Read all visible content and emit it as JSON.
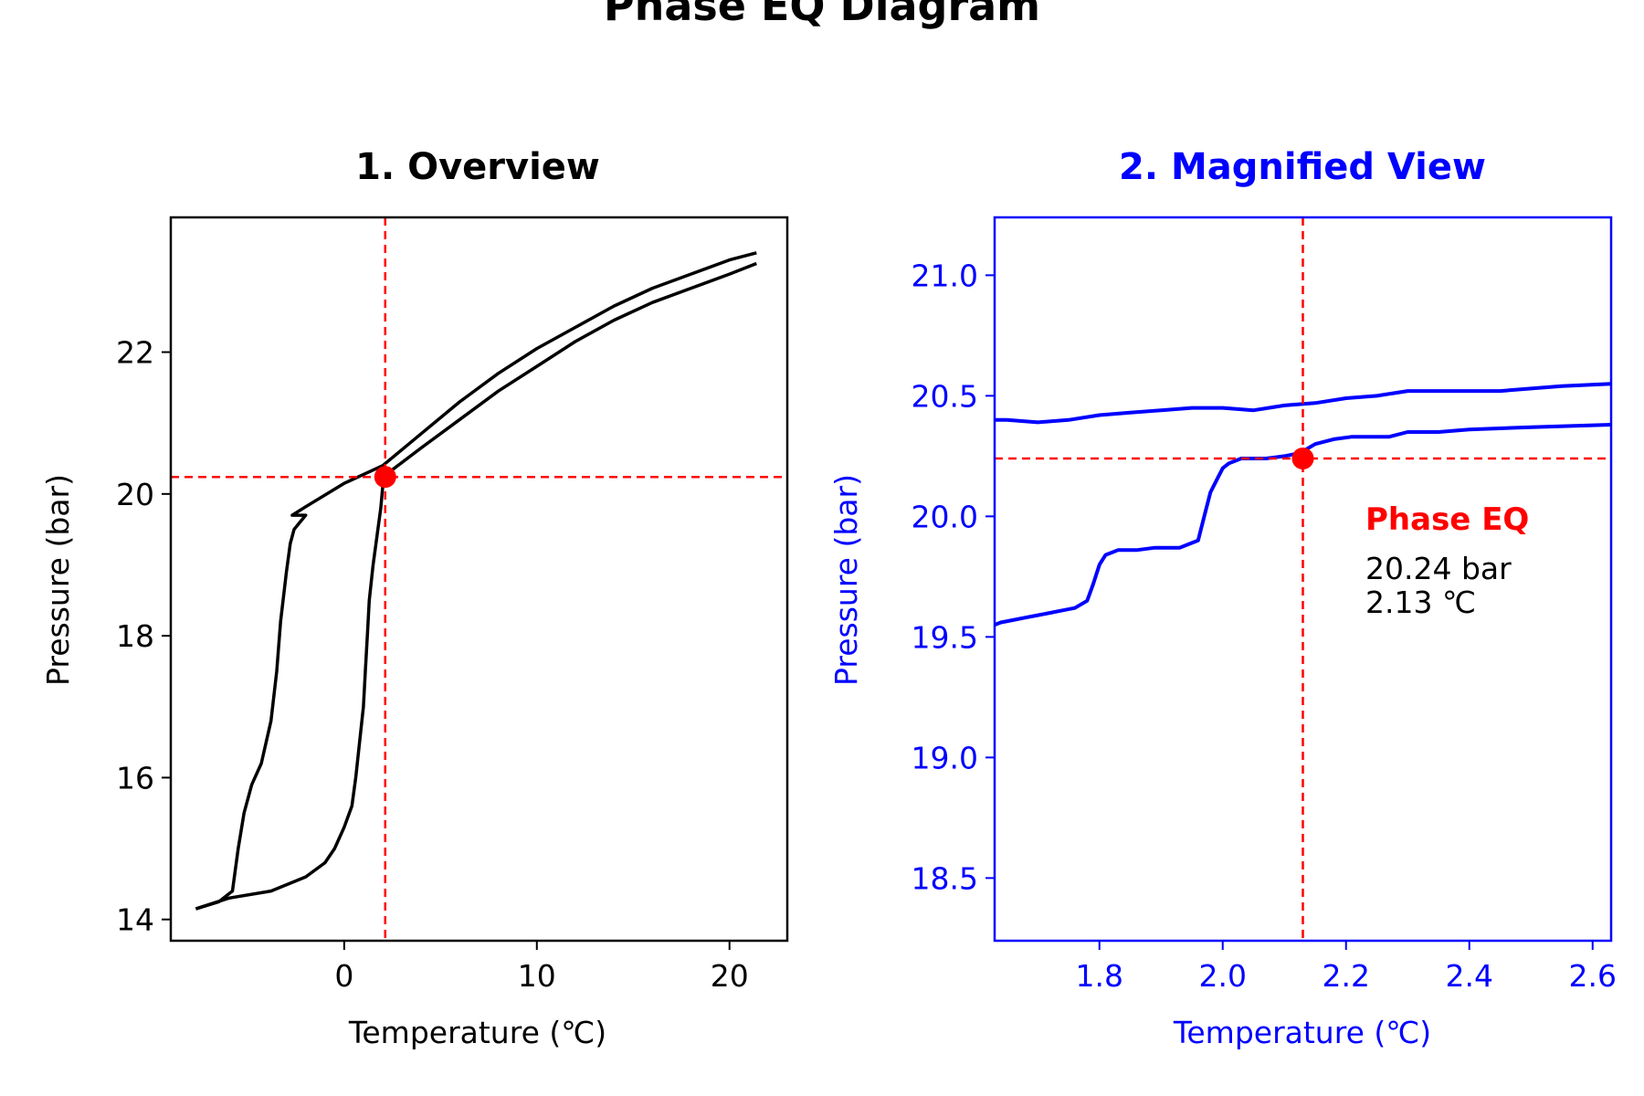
{
  "figure": {
    "suptitle": "Phase EQ Diagram",
    "marker_color": "#ff0000"
  },
  "chart_data": [
    {
      "type": "line",
      "title": "1. Overview",
      "xlabel": "Temperature (℃)",
      "ylabel": "Pressure (bar)",
      "color": "#000000",
      "title_color": "#000000",
      "xlim": [
        -9,
        23
      ],
      "ylim": [
        13.7,
        23.9
      ],
      "xticks": [
        0,
        10,
        20
      ],
      "yticks": [
        14,
        16,
        18,
        20,
        22
      ],
      "xtick_labels": [
        "0",
        "10",
        "20"
      ],
      "ytick_labels": [
        "14",
        "16",
        "18",
        "20",
        "22"
      ],
      "grid": false,
      "series": [
        {
          "x": [
            -7.7,
            -6.5,
            -5.8,
            -5.5,
            -5.2,
            -4.8,
            -4.3,
            -3.8,
            -3.5,
            -3.3,
            -3.0,
            -2.8,
            -2.6,
            -2.3,
            -2.0,
            -2.7,
            -2.0,
            0.0,
            2.0,
            4.0,
            6.0,
            8.0,
            10.0,
            12.0,
            14.0,
            16.0,
            18.0,
            20.0,
            21.4
          ],
          "y": [
            14.15,
            14.25,
            14.4,
            15.0,
            15.5,
            15.9,
            16.2,
            16.8,
            17.5,
            18.2,
            18.9,
            19.3,
            19.5,
            19.6,
            19.7,
            19.7,
            19.82,
            20.15,
            20.4,
            20.85,
            21.3,
            21.7,
            22.05,
            22.35,
            22.65,
            22.9,
            23.1,
            23.3,
            23.4
          ]
        },
        {
          "x": [
            -7.7,
            -6.0,
            -3.8,
            -2.0,
            -1.0,
            -0.5,
            0.0,
            0.4,
            0.6,
            0.8,
            1.0,
            1.1,
            1.2,
            1.3,
            1.5,
            1.7,
            1.9,
            2.0,
            2.3,
            4.0,
            6.0,
            8.0,
            10.0,
            12.0,
            14.0,
            16.0,
            18.0,
            20.0,
            21.4
          ],
          "y": [
            14.15,
            14.3,
            14.4,
            14.6,
            14.8,
            15.0,
            15.3,
            15.6,
            16.0,
            16.5,
            17.0,
            17.5,
            18.0,
            18.5,
            19.0,
            19.4,
            19.8,
            20.1,
            20.3,
            20.65,
            21.05,
            21.45,
            21.8,
            22.15,
            22.45,
            22.7,
            22.9,
            23.1,
            23.25
          ]
        }
      ],
      "eq_point": {
        "x": 2.13,
        "y": 20.24
      }
    },
    {
      "type": "line",
      "title": "2. Magnified View",
      "xlabel": "Temperature (℃)",
      "ylabel": "Pressure (bar)",
      "color": "#0000ff",
      "title_color": "#0000ff",
      "xlim": [
        1.63,
        2.63
      ],
      "ylim": [
        18.24,
        21.24
      ],
      "xticks": [
        1.8,
        2.0,
        2.2,
        2.4,
        2.6
      ],
      "yticks": [
        18.5,
        19.0,
        19.5,
        20.0,
        20.5,
        21.0
      ],
      "xtick_labels": [
        "1.8",
        "2.0",
        "2.2",
        "2.4",
        "2.6"
      ],
      "ytick_labels": [
        "18.5",
        "19.0",
        "19.5",
        "20.0",
        "20.5",
        "21.0"
      ],
      "grid": false,
      "series": [
        {
          "x": [
            1.63,
            1.65,
            1.7,
            1.75,
            1.8,
            1.85,
            1.9,
            1.95,
            2.0,
            2.05,
            2.1,
            2.15,
            2.2,
            2.25,
            2.3,
            2.35,
            2.4,
            2.45,
            2.5,
            2.55,
            2.63
          ],
          "y": [
            20.4,
            20.4,
            20.39,
            20.4,
            20.42,
            20.43,
            20.44,
            20.45,
            20.45,
            20.44,
            20.46,
            20.47,
            20.49,
            20.5,
            20.52,
            20.52,
            20.52,
            20.52,
            20.53,
            20.54,
            20.55
          ]
        },
        {
          "x": [
            1.63,
            1.64,
            1.66,
            1.68,
            1.7,
            1.72,
            1.74,
            1.76,
            1.78,
            1.79,
            1.8,
            1.81,
            1.83,
            1.86,
            1.89,
            1.93,
            1.96,
            1.97,
            1.98,
            1.99,
            2.0,
            2.01,
            2.03,
            2.05,
            2.07,
            2.1,
            2.12,
            2.13,
            2.15,
            2.18,
            2.21,
            2.24,
            2.27,
            2.3,
            2.35,
            2.4,
            2.5,
            2.63
          ],
          "y": [
            19.55,
            19.56,
            19.57,
            19.58,
            19.59,
            19.6,
            19.61,
            19.62,
            19.65,
            19.72,
            19.8,
            19.84,
            19.86,
            19.86,
            19.87,
            19.87,
            19.9,
            20.0,
            20.1,
            20.15,
            20.2,
            20.22,
            20.24,
            20.24,
            20.24,
            20.25,
            20.26,
            20.27,
            20.3,
            20.32,
            20.33,
            20.33,
            20.33,
            20.35,
            20.35,
            20.36,
            20.37,
            20.38
          ]
        }
      ],
      "eq_point": {
        "x": 2.13,
        "y": 20.24
      },
      "annotation": {
        "title": "Phase EQ",
        "value_line": "20.24 bar",
        "temp_line": "2.13 ℃"
      }
    }
  ]
}
